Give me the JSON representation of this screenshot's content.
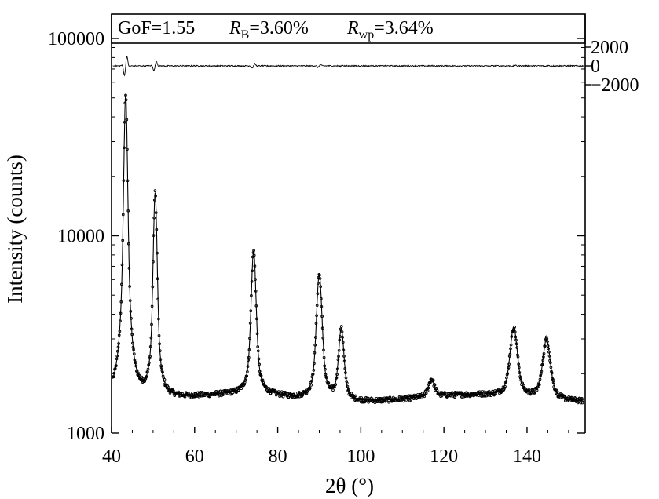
{
  "chart_data": {
    "type": "scatter",
    "title": "",
    "xlabel": "2θ (°)",
    "ylabel": "Intensity (counts)",
    "x_range": [
      40,
      154
    ],
    "y_scale": "log",
    "y_range": [
      1000,
      100000
    ],
    "x_ticks": [
      40,
      60,
      80,
      100,
      120,
      140
    ],
    "x_tick_labels": [
      "40",
      "60",
      "80",
      "100",
      "120",
      "140"
    ],
    "y_ticks": [
      1000,
      10000,
      100000
    ],
    "y_tick_labels": [
      "1000",
      "10000",
      "100000"
    ],
    "residual_axis": {
      "ticks": [
        2000,
        0,
        -2000
      ],
      "tick_labels": [
        "2000",
        "0",
        "−2000"
      ]
    },
    "stats_box": {
      "gof": "GoF=1.55",
      "rb_symbol": "R",
      "rb_sub": "B",
      "rb_value": "=3.60%",
      "rwp_symbol": "R",
      "rwp_sub": "wp",
      "rwp_value": "=3.64%"
    },
    "background_level": 1500,
    "peaks": [
      {
        "position": 43.4,
        "intensity": 52000
      },
      {
        "position": 50.5,
        "intensity": 16500
      },
      {
        "position": 74.2,
        "intensity": 8300
      },
      {
        "position": 90.0,
        "intensity": 6400
      },
      {
        "position": 95.3,
        "intensity": 3400
      },
      {
        "position": 117.0,
        "intensity": 1850
      },
      {
        "position": 136.8,
        "intensity": 3400
      },
      {
        "position": 144.7,
        "intensity": 3000
      }
    ],
    "series": [
      {
        "kind": "observed",
        "marker": "open circles"
      },
      {
        "kind": "calculated",
        "marker": "line"
      },
      {
        "kind": "difference",
        "marker": "line"
      }
    ],
    "grid": false,
    "legend": "none"
  }
}
